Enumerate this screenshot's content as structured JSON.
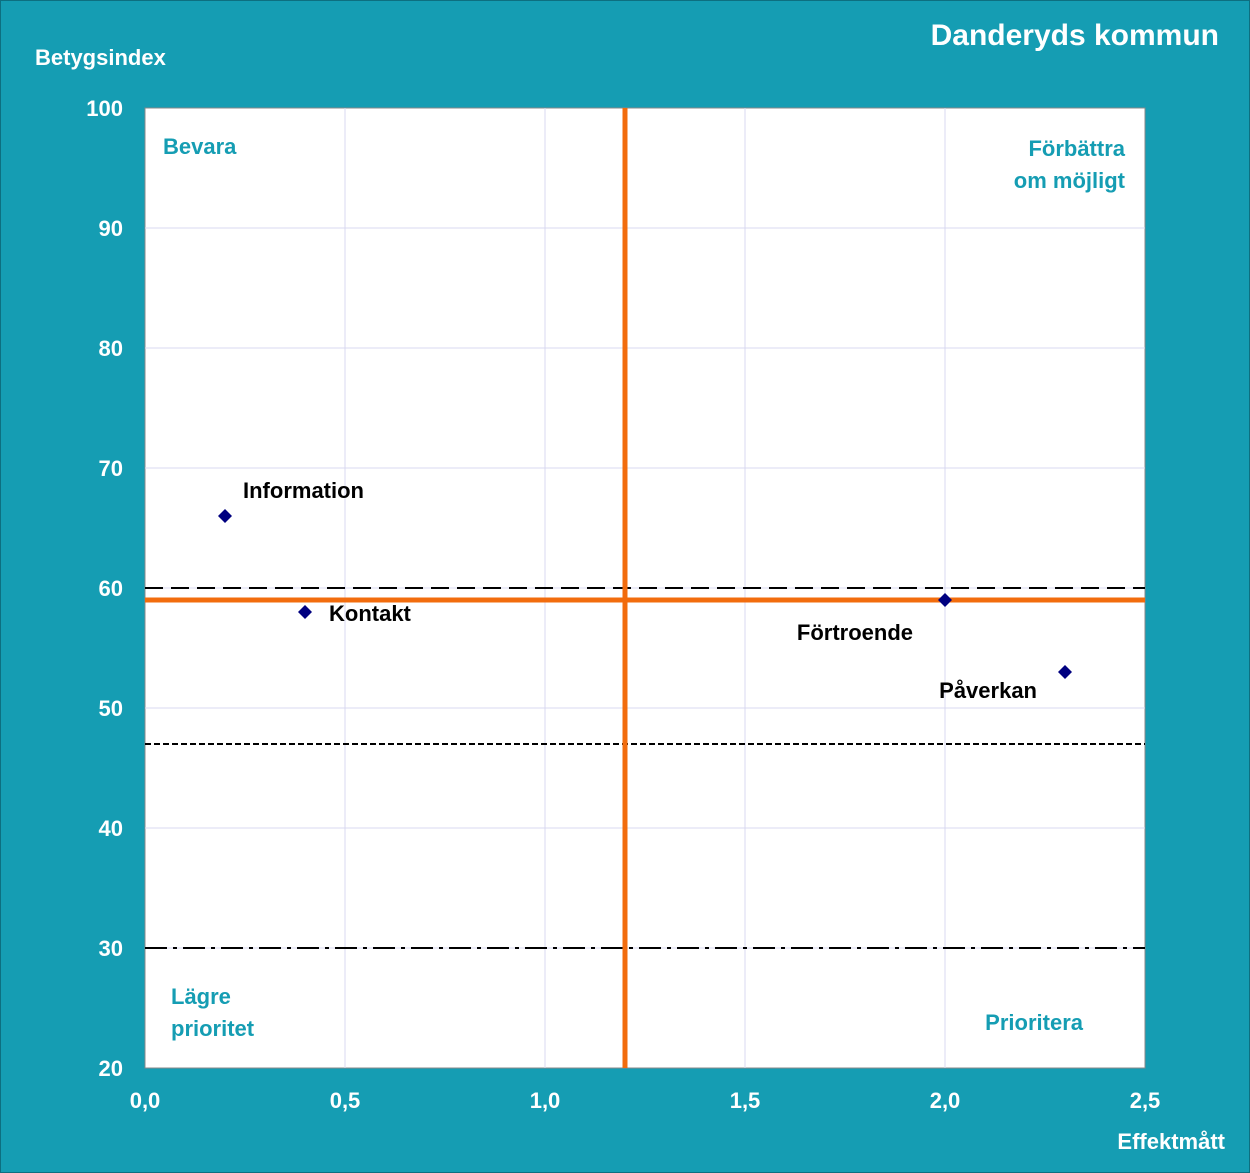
{
  "chart_data": {
    "type": "scatter",
    "title": "Danderyds kommun",
    "xlabel": "Effektmått",
    "ylabel": "Betygsindex",
    "xlim": [
      0,
      2.5
    ],
    "ylim": [
      20,
      100
    ],
    "x_ticks": [
      "0,0",
      "0,5",
      "1,0",
      "1,5",
      "2,0",
      "2,5"
    ],
    "y_ticks": [
      "20",
      "30",
      "40",
      "50",
      "60",
      "70",
      "80",
      "90",
      "100"
    ],
    "grid": true,
    "points": [
      {
        "label": "Information",
        "x": 0.2,
        "y": 66
      },
      {
        "label": "Kontakt",
        "x": 0.4,
        "y": 58
      },
      {
        "label": "Förtroende",
        "x": 2.0,
        "y": 59
      },
      {
        "label": "Påverkan",
        "x": 2.3,
        "y": 53
      }
    ],
    "reference_lines": {
      "vertical_x": 1.2,
      "horizontal_y": 59,
      "dashed_y": 60,
      "dotted_y": 47,
      "dashdot_y": 30
    },
    "quadrants": {
      "top_left": [
        "Bevara"
      ],
      "top_right": [
        "Förbättra",
        "om möjligt"
      ],
      "bottom_left": [
        "Lägre",
        "prioritet"
      ],
      "bottom_right": [
        "Prioritera"
      ]
    },
    "colors": {
      "background": "#159db3",
      "plot": "#ffffff",
      "grid": "#d9d9f0",
      "reference": "#f26c0d",
      "marker": "#000080",
      "quadrant_text": "#159db3"
    }
  }
}
